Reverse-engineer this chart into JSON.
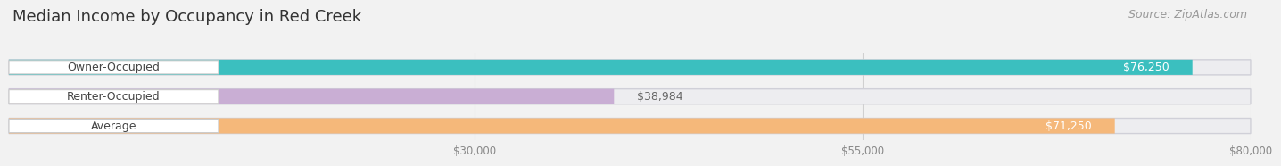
{
  "title": "Median Income by Occupancy in Red Creek",
  "source": "Source: ZipAtlas.com",
  "categories": [
    "Owner-Occupied",
    "Renter-Occupied",
    "Average"
  ],
  "values": [
    76250,
    38984,
    71250
  ],
  "labels": [
    "$76,250",
    "$38,984",
    "$71,250"
  ],
  "bar_colors": [
    "#3bbfbf",
    "#c9aed4",
    "#f5b87a"
  ],
  "bar_bg_color": "#e8e8ec",
  "xmin": 0,
  "xmax": 80000,
  "xticks": [
    30000,
    55000,
    80000
  ],
  "xtick_labels": [
    "$30,000",
    "$55,000",
    "$80,000"
  ],
  "background_color": "#f2f2f2",
  "title_fontsize": 13,
  "source_fontsize": 9,
  "label_fontsize": 9,
  "value_fontsize": 9
}
